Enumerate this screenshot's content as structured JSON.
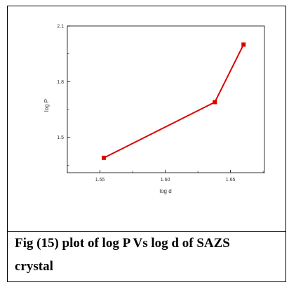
{
  "caption": {
    "line1": "Fig (15) plot of log P Vs log d of SAZS",
    "line2": "crystal"
  },
  "chart_data": {
    "type": "line",
    "xlabel": "log d",
    "ylabel": "log P",
    "x": [
      1.553,
      1.638,
      1.66
    ],
    "series": [
      {
        "values": [
          1.39,
          1.69,
          2.0
        ]
      }
    ],
    "xlim": [
      1.525,
      1.676
    ],
    "ylim": [
      1.31,
      2.1
    ],
    "xticks": [
      "1.55",
      "1.60",
      "1.65"
    ],
    "yticks": [
      "1.5",
      "1.8",
      "2.1"
    ],
    "grid": false,
    "series_color": "#e00000"
  }
}
